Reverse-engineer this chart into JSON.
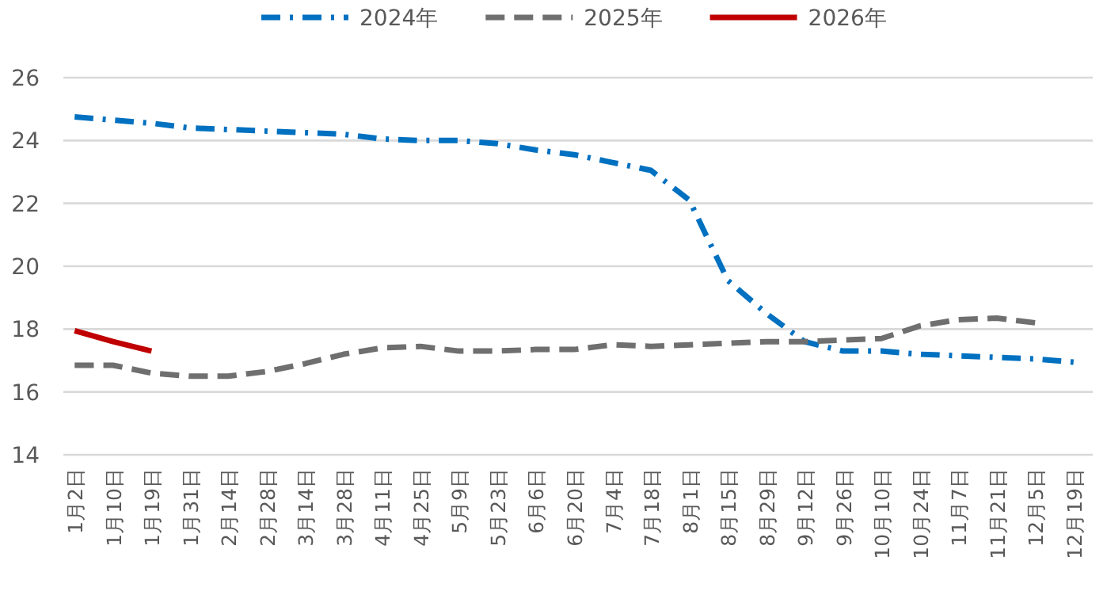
{
  "chart_data": {
    "type": "line",
    "categories": [
      "1月2日",
      "1月10日",
      "1月19日",
      "1月31日",
      "2月14日",
      "2月28日",
      "3月14日",
      "3月28日",
      "4月11日",
      "4月25日",
      "5月9日",
      "5月23日",
      "6月6日",
      "6月20日",
      "7月4日",
      "7月18日",
      "8月1日",
      "8月15日",
      "8月29日",
      "9月12日",
      "9月26日",
      "10月10日",
      "10月24日",
      "11月7日",
      "11月21日",
      "12月5日",
      "12月19日"
    ],
    "series": [
      {
        "name": "2024年",
        "color": "#0070c0",
        "line_style": "dashdot",
        "values": [
          24.75,
          24.65,
          24.55,
          24.4,
          24.35,
          24.3,
          24.25,
          24.2,
          24.05,
          24.0,
          24.0,
          23.9,
          23.7,
          23.55,
          23.3,
          23.05,
          22.1,
          19.55,
          18.5,
          17.6,
          17.3,
          17.3,
          17.2,
          17.15,
          17.1,
          17.05,
          16.95
        ]
      },
      {
        "name": "2025年",
        "color": "#6f6f6f",
        "line_style": "dashed",
        "values": [
          16.85,
          16.85,
          16.6,
          16.5,
          16.5,
          16.65,
          16.9,
          17.2,
          17.4,
          17.45,
          17.3,
          17.3,
          17.35,
          17.35,
          17.5,
          17.45,
          17.5,
          17.55,
          17.6,
          17.6,
          17.65,
          17.7,
          18.1,
          18.3,
          18.35,
          18.2,
          null
        ]
      },
      {
        "name": "2026年",
        "color": "#c00000",
        "line_style": "solid",
        "values": [
          17.95,
          17.6,
          17.3,
          null,
          null,
          null,
          null,
          null,
          null,
          null,
          null,
          null,
          null,
          null,
          null,
          null,
          null,
          null,
          null,
          null,
          null,
          null,
          null,
          null,
          null,
          null,
          null
        ]
      }
    ],
    "ylim": [
      14,
      26
    ],
    "yticks": [
      14,
      16,
      18,
      20,
      22,
      24,
      26
    ],
    "grid": "y",
    "legend": "top",
    "marker": "none"
  }
}
